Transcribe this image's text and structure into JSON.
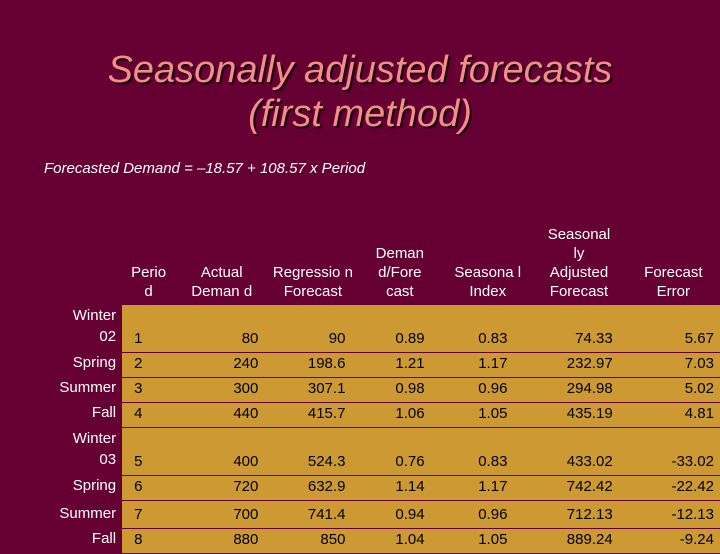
{
  "title": {
    "line1": "Seasonally adjusted forecasts",
    "line2": "(first method)"
  },
  "formula": "Forecasted  Demand = –18.57 + 108.57 x Period",
  "table": {
    "headers": [
      "",
      "Perio d",
      "Actual Deman d",
      "Regressio n Forecast",
      "Deman d/Fore cast",
      "Seasona l Index",
      "Seasonal ly Adjusted Forecast",
      "Forecast Error"
    ],
    "rows": [
      {
        "season": "Winter 02",
        "period": "1",
        "actual": "80",
        "forecast": "90",
        "ratio": "0.89",
        "index": "0.83",
        "adjusted": "74.33",
        "error": "5.67"
      },
      {
        "season": "Spring",
        "period": "2",
        "actual": "240",
        "forecast": "198.6",
        "ratio": "1.21",
        "index": "1.17",
        "adjusted": "232.97",
        "error": "7.03"
      },
      {
        "season": "Summer",
        "period": "3",
        "actual": "300",
        "forecast": "307.1",
        "ratio": "0.98",
        "index": "0.96",
        "adjusted": "294.98",
        "error": "5.02"
      },
      {
        "season": "Fall",
        "period": "4",
        "actual": "440",
        "forecast": "415.7",
        "ratio": "1.06",
        "index": "1.05",
        "adjusted": "435.19",
        "error": "4.81"
      },
      {
        "season": "Winter 03",
        "period": "5",
        "actual": "400",
        "forecast": "524.3",
        "ratio": "0.76",
        "index": "0.83",
        "adjusted": "433.02",
        "error": "-33.02"
      },
      {
        "season": "Spring",
        "period": "6",
        "actual": "720",
        "forecast": "632.9",
        "ratio": "1.14",
        "index": "1.17",
        "adjusted": "742.42",
        "error": "-22.42"
      },
      {
        "season": "Summer",
        "period": "7",
        "actual": "700",
        "forecast": "741.4",
        "ratio": "0.94",
        "index": "0.96",
        "adjusted": "712.13",
        "error": "-12.13"
      },
      {
        "season": "Fall",
        "period": "8",
        "actual": "880",
        "forecast": "850",
        "ratio": "1.04",
        "index": "1.05",
        "adjusted": "889.24",
        "error": "-9.24"
      }
    ]
  },
  "colors": {
    "background": "#660033",
    "title": "#f28d88",
    "cell": "#cc9933",
    "text": "#ffffff"
  }
}
